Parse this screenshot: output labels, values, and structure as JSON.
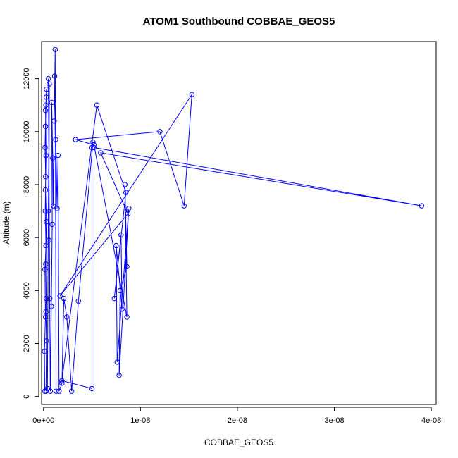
{
  "chart_data": {
    "type": "line",
    "title": "ATOM1 Southbound COBBAE_GEOS5",
    "xlabel": "COBBAE_GEOS5",
    "ylabel": "Altitude (m)",
    "xlim": [
      -2e-10,
      4.05e-08
    ],
    "ylim": [
      -300,
      13400
    ],
    "x_ticks": [
      0,
      1e-08,
      2e-08,
      3e-08,
      4e-08
    ],
    "x_tick_labels": [
      "0e+00",
      "1e-08",
      "2e-08",
      "3e-08",
      "4e-08"
    ],
    "y_ticks": [
      0,
      2000,
      4000,
      6000,
      8000,
      10000,
      12000
    ],
    "y_tick_labels": [
      "0",
      "2000",
      "4000",
      "6000",
      "8000",
      "10000",
      "12000"
    ],
    "line_color": "#0000ff",
    "grid": false,
    "series": [
      {
        "points": [
          [
            1.3e-10,
            200
          ],
          [
            1e-10,
            1700
          ],
          [
            2e-10,
            3000
          ],
          [
            1.5e-10,
            4800
          ],
          [
            2.5e-10,
            5700
          ],
          [
            1.8e-10,
            7000
          ],
          [
            2.2e-10,
            8300
          ],
          [
            1.6e-10,
            9400
          ],
          [
            2e-10,
            10200
          ],
          [
            2.8e-10,
            11300
          ],
          [
            3e-10,
            11600
          ],
          [
            2.4e-10,
            11000
          ],
          [
            2.1e-10,
            10800
          ],
          [
            2.6e-10,
            9100
          ],
          [
            2e-10,
            7800
          ],
          [
            3e-10,
            6600
          ],
          [
            2.3e-10,
            5000
          ],
          [
            2.8e-10,
            3700
          ],
          [
            2.5e-10,
            3200
          ],
          [
            3e-10,
            2100
          ],
          [
            2.6e-10,
            200
          ],
          [
            4e-10,
            300
          ],
          [
            5e-10,
            7000
          ],
          [
            6e-10,
            11800
          ],
          [
            5.5e-10,
            5900
          ],
          [
            6.5e-10,
            3700
          ],
          [
            5e-10,
            12000
          ],
          [
            7e-10,
            200
          ],
          [
            8e-10,
            3400
          ],
          [
            9e-10,
            6500
          ],
          [
            8.5e-10,
            11100
          ],
          [
            9.5e-10,
            9000
          ],
          [
            1e-09,
            7200
          ],
          [
            1.1e-09,
            10400
          ],
          [
            1.2e-09,
            13100
          ],
          [
            1.3e-09,
            200
          ],
          [
            1.25e-09,
            9700
          ],
          [
            1.15e-09,
            12100
          ],
          [
            1.4e-09,
            7100
          ],
          [
            1.5e-09,
            9100
          ],
          [
            1.6e-09,
            200
          ],
          [
            1.9e-09,
            500
          ],
          [
            2.1e-09,
            3700
          ],
          [
            2.4e-09,
            3000
          ],
          [
            2.9e-09,
            200
          ],
          [
            3.6e-09,
            3600
          ],
          [
            5.1e-09,
            9600
          ],
          [
            5e-09,
            9400
          ],
          [
            5e-09,
            300
          ],
          [
            1.9e-09,
            600
          ],
          [
            5.5e-09,
            11000
          ],
          [
            8.5e-09,
            7700
          ],
          [
            7.3e-09,
            3700
          ],
          [
            8e-09,
            6100
          ],
          [
            8.1e-09,
            3300
          ],
          [
            7.5e-09,
            5700
          ],
          [
            7.6e-09,
            1300
          ],
          [
            8.8e-09,
            7100
          ],
          [
            7.8e-09,
            800
          ],
          [
            7.9e-09,
            4000
          ],
          [
            8.6e-09,
            4900
          ],
          [
            8.4e-09,
            8000
          ],
          [
            8.6e-09,
            3000
          ],
          [
            5.2e-09,
            9500
          ],
          [
            3.3e-09,
            9700
          ],
          [
            1.2e-08,
            10000
          ],
          [
            1.45e-08,
            7200
          ],
          [
            1.53e-08,
            11400
          ],
          [
            1.7e-09,
            3800
          ],
          [
            8.7e-09,
            6900
          ],
          [
            5.9e-09,
            9200
          ],
          [
            3.9e-08,
            7200
          ],
          [
            5.2e-09,
            9400
          ]
        ]
      }
    ]
  }
}
